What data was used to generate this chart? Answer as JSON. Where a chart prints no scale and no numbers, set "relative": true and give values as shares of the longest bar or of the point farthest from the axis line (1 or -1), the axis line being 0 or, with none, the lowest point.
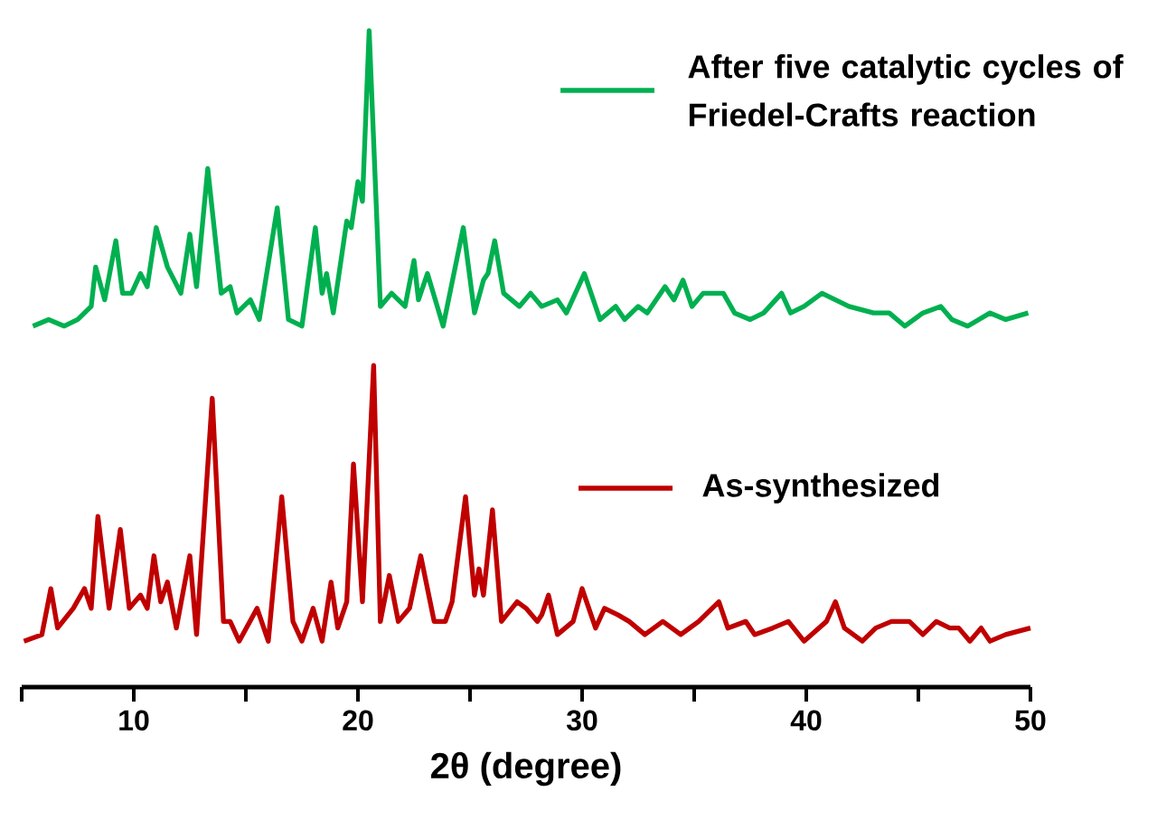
{
  "chart_data": {
    "type": "line",
    "relative": true,
    "xlabel": "2θ (degree)",
    "xlim": [
      5,
      50
    ],
    "xticks": [
      {
        "value": 5,
        "label": null
      },
      10,
      {
        "value": 15,
        "label": null
      },
      20,
      {
        "value": 25,
        "label": null
      },
      30,
      {
        "value": 35,
        "label": null
      },
      40,
      {
        "value": 45,
        "label": null
      },
      50
    ],
    "legend": "right",
    "grid": false,
    "marker": "none",
    "line_style": "solid",
    "series": [
      {
        "name": "After five catalytic cycles of Friedel-Crafts reaction",
        "color": "#00b050",
        "x": [
          5.5,
          6.2,
          6.9,
          7.5,
          8.1,
          8.3,
          8.7,
          9.2,
          9.5,
          9.9,
          10.3,
          10.6,
          11.0,
          11.5,
          12.1,
          12.5,
          12.8,
          13.3,
          13.9,
          14.3,
          14.6,
          15.2,
          15.6,
          16.4,
          16.9,
          17.5,
          18.1,
          18.4,
          18.6,
          18.9,
          19.5,
          19.7,
          20.0,
          20.2,
          20.5,
          21.0,
          21.5,
          22.1,
          22.5,
          22.7,
          23.1,
          23.8,
          24.7,
          25.2,
          25.6,
          25.8,
          26.1,
          26.5,
          27.2,
          27.7,
          28.2,
          28.9,
          29.3,
          30.1,
          30.8,
          31.5,
          31.9,
          32.5,
          32.9,
          33.7,
          34.1,
          34.5,
          34.9,
          35.4,
          36.3,
          36.8,
          37.5,
          38.1,
          38.9,
          39.3,
          39.9,
          40.7,
          41.9,
          43.0,
          43.7,
          44.4,
          45.2,
          46.0,
          46.5,
          47.2,
          48.2,
          48.9,
          49.9
        ],
        "values": [
          0.55,
          0.56,
          0.55,
          0.56,
          0.58,
          0.64,
          0.59,
          0.68,
          0.6,
          0.6,
          0.63,
          0.61,
          0.7,
          0.64,
          0.6,
          0.69,
          0.61,
          0.79,
          0.6,
          0.61,
          0.57,
          0.59,
          0.56,
          0.73,
          0.56,
          0.55,
          0.7,
          0.6,
          0.63,
          0.57,
          0.71,
          0.7,
          0.77,
          0.74,
          1.0,
          0.58,
          0.6,
          0.58,
          0.65,
          0.59,
          0.63,
          0.55,
          0.7,
          0.57,
          0.62,
          0.63,
          0.68,
          0.6,
          0.58,
          0.6,
          0.58,
          0.59,
          0.57,
          0.63,
          0.56,
          0.58,
          0.56,
          0.58,
          0.57,
          0.61,
          0.59,
          0.62,
          0.58,
          0.6,
          0.6,
          0.57,
          0.56,
          0.57,
          0.6,
          0.57,
          0.58,
          0.6,
          0.58,
          0.57,
          0.57,
          0.55,
          0.57,
          0.58,
          0.56,
          0.55,
          0.57,
          0.56,
          0.57
        ]
      },
      {
        "name": "As-synthesized",
        "color": "#c00000",
        "x": [
          5.1,
          5.9,
          6.3,
          6.6,
          7.3,
          7.8,
          8.1,
          8.4,
          8.9,
          9.4,
          9.8,
          10.3,
          10.6,
          10.9,
          11.2,
          11.5,
          11.9,
          12.5,
          12.8,
          13.5,
          14.0,
          14.3,
          14.7,
          15.5,
          16.0,
          16.6,
          17.1,
          17.5,
          18.0,
          18.4,
          18.8,
          19.1,
          19.5,
          19.8,
          20.2,
          20.7,
          21.0,
          21.4,
          21.8,
          22.3,
          22.8,
          23.4,
          23.9,
          24.2,
          24.8,
          25.2,
          25.4,
          25.6,
          26.0,
          26.4,
          27.1,
          27.5,
          28.0,
          28.2,
          28.5,
          28.9,
          29.6,
          30.0,
          30.6,
          31.0,
          31.6,
          32.1,
          32.8,
          33.6,
          34.0,
          34.4,
          35.2,
          36.1,
          36.5,
          37.3,
          37.7,
          38.5,
          39.2,
          39.9,
          40.9,
          41.3,
          41.7,
          42.5,
          43.1,
          43.8,
          44.6,
          45.2,
          45.8,
          46.4,
          46.8,
          47.3,
          47.8,
          48.2,
          48.9,
          50.0
        ],
        "values": [
          0.07,
          0.08,
          0.15,
          0.09,
          0.12,
          0.15,
          0.12,
          0.26,
          0.12,
          0.24,
          0.12,
          0.14,
          0.12,
          0.2,
          0.13,
          0.16,
          0.09,
          0.2,
          0.08,
          0.44,
          0.1,
          0.1,
          0.07,
          0.12,
          0.07,
          0.29,
          0.1,
          0.07,
          0.12,
          0.07,
          0.16,
          0.09,
          0.13,
          0.34,
          0.13,
          0.49,
          0.1,
          0.17,
          0.1,
          0.12,
          0.2,
          0.1,
          0.1,
          0.13,
          0.29,
          0.14,
          0.18,
          0.14,
          0.27,
          0.1,
          0.13,
          0.12,
          0.1,
          0.11,
          0.14,
          0.08,
          0.1,
          0.15,
          0.09,
          0.12,
          0.11,
          0.1,
          0.08,
          0.1,
          0.09,
          0.08,
          0.1,
          0.13,
          0.09,
          0.1,
          0.08,
          0.09,
          0.1,
          0.07,
          0.1,
          0.13,
          0.09,
          0.07,
          0.09,
          0.1,
          0.1,
          0.08,
          0.1,
          0.09,
          0.09,
          0.07,
          0.09,
          0.07,
          0.08,
          0.09
        ]
      }
    ]
  }
}
